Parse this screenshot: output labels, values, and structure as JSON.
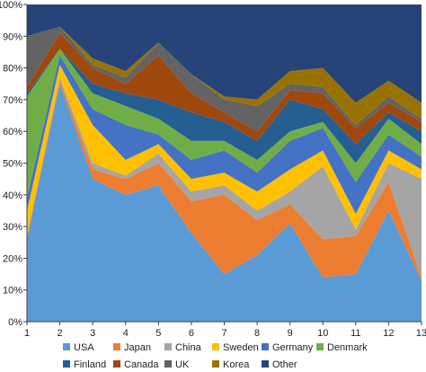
{
  "chart_data": {
    "type": "area",
    "stacked": true,
    "x": [
      1,
      2,
      3,
      4,
      5,
      6,
      7,
      8,
      9,
      10,
      11,
      12,
      13
    ],
    "ylim": [
      0,
      100
    ],
    "yticks": [
      "0%",
      "10%",
      "20%",
      "30%",
      "40%",
      "50%",
      "60%",
      "70%",
      "80%",
      "90%",
      "100%"
    ],
    "xticks": [
      "1",
      "2",
      "3",
      "4",
      "5",
      "6",
      "7",
      "8",
      "9",
      "10",
      "11",
      "12",
      "13"
    ],
    "grid": false,
    "legend_position": "bottom",
    "series": [
      {
        "name": "USA",
        "color": "#5b9bd5",
        "values": [
          26,
          75,
          45,
          40,
          43,
          28,
          15,
          21,
          31,
          14,
          15,
          35,
          13
        ]
      },
      {
        "name": "Japan",
        "color": "#ed7d31",
        "values": [
          1,
          1,
          3,
          5,
          7,
          10,
          25,
          11,
          6,
          12,
          12,
          9,
          1
        ]
      },
      {
        "name": "China",
        "color": "#a5a5a5",
        "values": [
          0,
          1,
          2,
          1,
          3,
          3,
          3,
          3,
          4,
          23,
          2,
          6,
          31
        ]
      },
      {
        "name": "Sweden",
        "color": "#ffc000",
        "values": [
          8,
          4,
          12,
          5,
          3,
          4,
          4,
          6,
          7,
          5,
          5,
          4,
          3
        ]
      },
      {
        "name": "Germany",
        "color": "#4472c4",
        "values": [
          4,
          3,
          5,
          11,
          3,
          6,
          7,
          6,
          9,
          7,
          10,
          5,
          4
        ]
      },
      {
        "name": "Denmark",
        "color": "#70ad47",
        "values": [
          32,
          2,
          5,
          6,
          5,
          6,
          3,
          4,
          3,
          2,
          6,
          5,
          4
        ]
      },
      {
        "name": "Finland",
        "color": "#255e91",
        "values": [
          1,
          0,
          3,
          4,
          6,
          9,
          6,
          6,
          10,
          4,
          6,
          2,
          4
        ]
      },
      {
        "name": "Canada",
        "color": "#9e480e",
        "values": [
          2,
          5,
          5,
          3,
          14,
          6,
          3,
          3,
          3,
          5,
          5,
          3,
          3
        ]
      },
      {
        "name": "UK",
        "color": "#636363",
        "values": [
          16,
          2,
          1,
          2,
          4,
          6,
          4,
          8,
          2,
          2,
          1,
          2,
          1
        ]
      },
      {
        "name": "Korea",
        "color": "#997300",
        "values": [
          0,
          0,
          2,
          2,
          0,
          0,
          1,
          2,
          4,
          6,
          7,
          5,
          5
        ]
      },
      {
        "name": "Other",
        "color": "#264478",
        "values": [
          10,
          7,
          17,
          21,
          12,
          22,
          29,
          30,
          21,
          20,
          31,
          24,
          31
        ]
      }
    ]
  }
}
